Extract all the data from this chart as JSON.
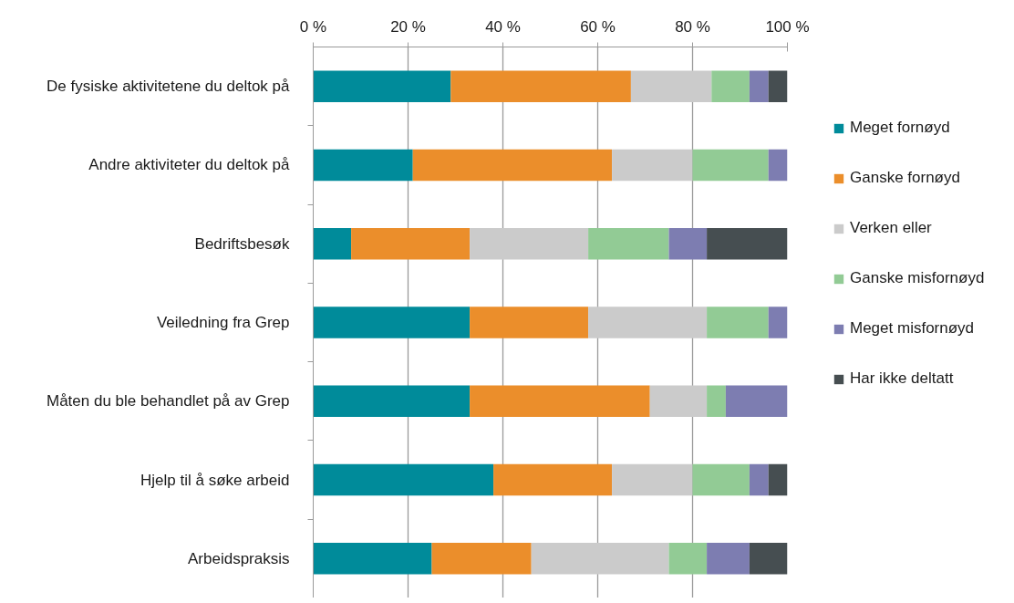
{
  "chart_data": {
    "type": "bar",
    "orientation": "horizontal",
    "stacked": true,
    "categories": [
      "De fysiske aktivitetene du deltok på",
      "Andre aktiviteter du deltok på",
      "Bedriftsbesøk",
      "Veiledning fra Grep",
      "Måten du ble behandlet på av Grep",
      "Hjelp til å søke arbeid",
      "Arbeidspraksis"
    ],
    "series": [
      {
        "name": "Meget fornøyd",
        "color": "#008b9a",
        "values": [
          29,
          21,
          8,
          33,
          33,
          38,
          25
        ]
      },
      {
        "name": "Ganske fornøyd",
        "color": "#eb8e2b",
        "values": [
          38,
          42,
          25,
          25,
          38,
          25,
          21
        ]
      },
      {
        "name": "Verken eller",
        "color": "#cbcbcb",
        "values": [
          17,
          17,
          25,
          25,
          12,
          17,
          29
        ]
      },
      {
        "name": "Ganske misfornøyd",
        "color": "#92cb95",
        "values": [
          8,
          16,
          17,
          13,
          4,
          12,
          8
        ]
      },
      {
        "name": "Meget misfornøyd",
        "color": "#7d7db1",
        "values": [
          4,
          4,
          8,
          4,
          13,
          4,
          9
        ]
      },
      {
        "name": "Har ikke deltatt",
        "color": "#464e51",
        "values": [
          4,
          0,
          17,
          0,
          0,
          4,
          8
        ]
      }
    ],
    "xlim": [
      0,
      100
    ],
    "xticks": [
      {
        "value": 0,
        "label": "0 %"
      },
      {
        "value": 20,
        "label": "20 %"
      },
      {
        "value": 40,
        "label": "40 %"
      },
      {
        "value": 60,
        "label": "60 %"
      },
      {
        "value": 80,
        "label": "80 %"
      },
      {
        "value": 100,
        "label": "100 %"
      }
    ],
    "grid": "x",
    "legend": "right"
  }
}
